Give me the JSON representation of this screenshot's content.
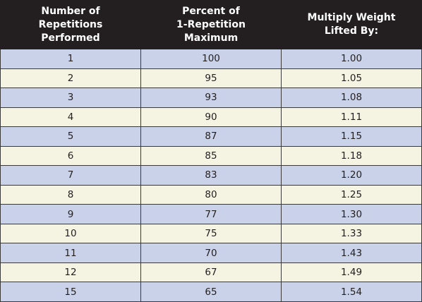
{
  "table": {
    "header": [
      [
        "Number of",
        "Repetitions",
        "Performed"
      ],
      [
        "Percent of",
        "1-Repetition",
        "Maximum"
      ],
      [
        "Multiply Weight",
        "Lifted By:"
      ]
    ],
    "rows": [
      [
        "1",
        "100",
        "1.00"
      ],
      [
        "2",
        "95",
        "1.05"
      ],
      [
        "3",
        "93",
        "1.08"
      ],
      [
        "4",
        "90",
        "1.11"
      ],
      [
        "5",
        "87",
        "1.15"
      ],
      [
        "6",
        "85",
        "1.18"
      ],
      [
        "7",
        "83",
        "1.20"
      ],
      [
        "8",
        "80",
        "1.25"
      ],
      [
        "9",
        "77",
        "1.30"
      ],
      [
        "10",
        "75",
        "1.33"
      ],
      [
        "11",
        "70",
        "1.43"
      ],
      [
        "12",
        "67",
        "1.49"
      ],
      [
        "15",
        "65",
        "1.54"
      ]
    ]
  }
}
